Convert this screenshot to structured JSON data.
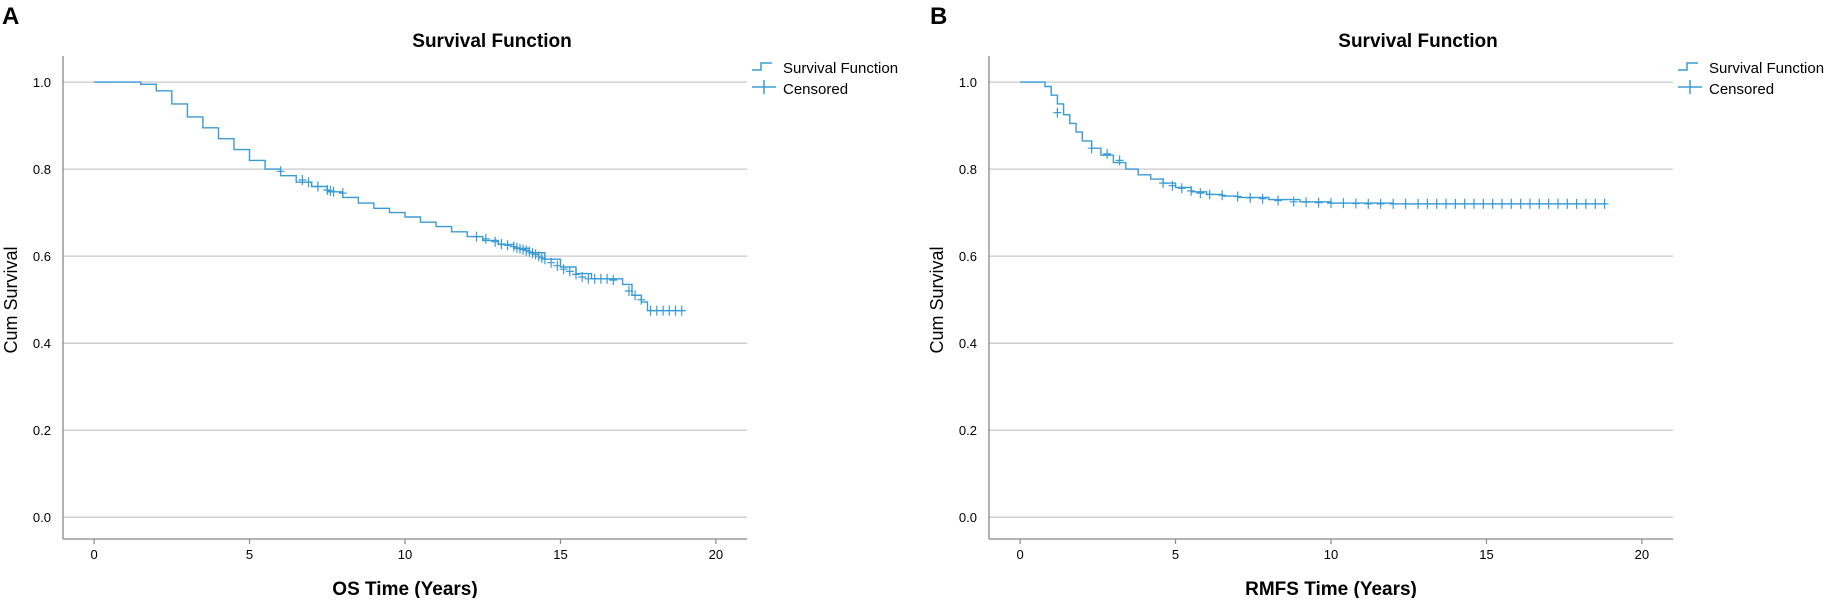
{
  "panels": [
    {
      "panel_label": "A",
      "chart_data": {
        "type": "line",
        "subtype": "kaplan-meier",
        "title": "Survival Function",
        "xlabel": "OS Time (Years)",
        "ylabel": "Cum Survival",
        "xlim": [
          -1,
          21
        ],
        "ylim": [
          -0.05,
          1.06
        ],
        "xticks": [
          0,
          5,
          10,
          15,
          20
        ],
        "yticks": [
          0.0,
          0.2,
          0.4,
          0.6,
          0.8,
          1.0
        ],
        "ytick_labels": [
          "0.0",
          "0.2",
          "0.4",
          "0.6",
          "0.8",
          "1.0"
        ],
        "grid": "horizontal",
        "legend": [
          "Survival Function",
          "Censored"
        ],
        "legend_position": "top-right outside",
        "series": [
          {
            "name": "Survival Function",
            "x": [
              0,
              1.0,
              1.5,
              2.0,
              2.5,
              3.0,
              3.5,
              4.0,
              4.5,
              5.0,
              5.5,
              6.0,
              6.5,
              7.0,
              7.5,
              8.0,
              8.5,
              9.0,
              9.5,
              10.0,
              10.5,
              11.0,
              11.5,
              12.0,
              12.5,
              13.0,
              13.5,
              14.0,
              14.5,
              15.0,
              15.5,
              16.0,
              16.5,
              17.0,
              17.3,
              17.6,
              17.8,
              18.5,
              19.0
            ],
            "y": [
              1.0,
              1.0,
              0.995,
              0.98,
              0.95,
              0.92,
              0.895,
              0.87,
              0.845,
              0.82,
              0.8,
              0.785,
              0.77,
              0.76,
              0.748,
              0.735,
              0.722,
              0.71,
              0.7,
              0.69,
              0.678,
              0.668,
              0.656,
              0.645,
              0.636,
              0.627,
              0.618,
              0.608,
              0.593,
              0.575,
              0.56,
              0.548,
              0.548,
              0.535,
              0.51,
              0.495,
              0.475,
              0.475,
              0.475
            ]
          },
          {
            "name": "Censored",
            "x": [
              6.0,
              6.7,
              6.9,
              7.2,
              7.5,
              7.6,
              7.7,
              8.0,
              12.3,
              12.6,
              12.9,
              13.1,
              13.3,
              13.5,
              13.6,
              13.7,
              13.8,
              13.9,
              14.0,
              14.1,
              14.2,
              14.3,
              14.4,
              14.5,
              14.7,
              14.9,
              15.1,
              15.3,
              15.5,
              15.7,
              15.9,
              16.1,
              16.3,
              16.5,
              16.7,
              17.2,
              17.4,
              17.6,
              17.9,
              18.1,
              18.3,
              18.5,
              18.7,
              18.9
            ],
            "y": [
              0.795,
              0.775,
              0.77,
              0.76,
              0.752,
              0.75,
              0.748,
              0.745,
              0.645,
              0.64,
              0.633,
              0.628,
              0.625,
              0.622,
              0.619,
              0.617,
              0.615,
              0.613,
              0.61,
              0.607,
              0.604,
              0.6,
              0.596,
              0.593,
              0.585,
              0.578,
              0.57,
              0.565,
              0.558,
              0.552,
              0.548,
              0.548,
              0.548,
              0.548,
              0.545,
              0.52,
              0.51,
              0.5,
              0.475,
              0.475,
              0.475,
              0.475,
              0.475,
              0.475
            ]
          }
        ]
      }
    },
    {
      "panel_label": "B",
      "chart_data": {
        "type": "line",
        "subtype": "kaplan-meier",
        "title": "Survival Function",
        "xlabel": "RMFS Time (Years)",
        "ylabel": "Cum Survival",
        "xlim": [
          -1,
          21
        ],
        "ylim": [
          -0.05,
          1.06
        ],
        "xticks": [
          0,
          5,
          10,
          15,
          20
        ],
        "yticks": [
          0.0,
          0.2,
          0.4,
          0.6,
          0.8,
          1.0
        ],
        "ytick_labels": [
          "0.0",
          "0.2",
          "0.4",
          "0.6",
          "0.8",
          "1.0"
        ],
        "grid": "horizontal",
        "legend": [
          "Survival Function",
          "Censored"
        ],
        "legend_position": "top-right outside",
        "series": [
          {
            "name": "Survival Function",
            "x": [
              0,
              0.4,
              0.8,
              1.0,
              1.2,
              1.4,
              1.6,
              1.8,
              2.0,
              2.3,
              2.6,
              3.0,
              3.4,
              3.8,
              4.2,
              4.6,
              5.0,
              5.5,
              6.0,
              6.5,
              7.0,
              8.0,
              9.0,
              10.0,
              12.0,
              14.0,
              16.0,
              18.0,
              18.8
            ],
            "y": [
              1.0,
              1.0,
              0.99,
              0.97,
              0.95,
              0.925,
              0.905,
              0.885,
              0.865,
              0.848,
              0.832,
              0.815,
              0.8,
              0.787,
              0.777,
              0.768,
              0.758,
              0.748,
              0.742,
              0.738,
              0.735,
              0.73,
              0.725,
              0.722,
              0.72,
              0.72,
              0.72,
              0.72,
              0.72
            ]
          },
          {
            "name": "Censored",
            "x": [
              1.2,
              2.3,
              2.8,
              3.2,
              4.6,
              4.9,
              5.2,
              5.5,
              5.8,
              6.1,
              6.5,
              7.0,
              7.4,
              7.8,
              8.3,
              8.8,
              9.2,
              9.6,
              10.0,
              10.4,
              10.8,
              11.2,
              11.6,
              12.0,
              12.4,
              12.8,
              13.1,
              13.4,
              13.7,
              14.0,
              14.3,
              14.6,
              14.9,
              15.2,
              15.5,
              15.8,
              16.1,
              16.4,
              16.7,
              17.0,
              17.3,
              17.6,
              17.9,
              18.2,
              18.5,
              18.8
            ],
            "y": [
              0.93,
              0.848,
              0.835,
              0.82,
              0.768,
              0.762,
              0.756,
              0.75,
              0.745,
              0.742,
              0.74,
              0.737,
              0.734,
              0.732,
              0.728,
              0.725,
              0.724,
              0.723,
              0.722,
              0.722,
              0.721,
              0.72,
              0.72,
              0.72,
              0.72,
              0.72,
              0.72,
              0.72,
              0.72,
              0.72,
              0.72,
              0.72,
              0.72,
              0.72,
              0.72,
              0.72,
              0.72,
              0.72,
              0.72,
              0.72,
              0.72,
              0.72,
              0.72,
              0.72,
              0.72,
              0.72
            ]
          }
        ]
      }
    }
  ],
  "colors": {
    "line": "#3b9bd6",
    "grid": "#c8c8c8",
    "axis": "#888888",
    "text": "#000000"
  }
}
